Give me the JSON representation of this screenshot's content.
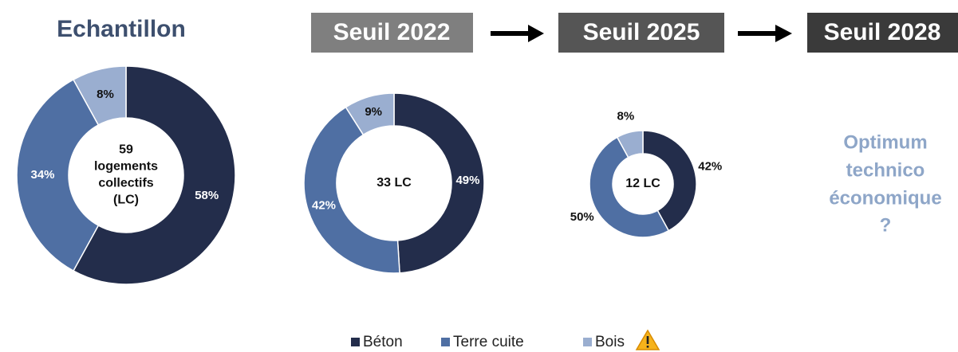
{
  "chart_data": [
    {
      "type": "donut",
      "title": "Echantillon",
      "center_label": [
        "59",
        "logements",
        "collectifs",
        "(LC)"
      ],
      "categories": [
        "Béton",
        "Terre cuite",
        "Bois"
      ],
      "values": [
        58,
        34,
        8
      ],
      "value_labels": [
        "58%",
        "34%",
        "8%"
      ],
      "colors": [
        "#232d4b",
        "#4f6fa3",
        "#9aaed0"
      ]
    },
    {
      "type": "donut",
      "title": "Seuil 2022",
      "center_label": [
        "33 LC"
      ],
      "categories": [
        "Béton",
        "Terre cuite",
        "Bois"
      ],
      "values": [
        49,
        42,
        9
      ],
      "value_labels": [
        "49%",
        "42%",
        "9%"
      ],
      "colors": [
        "#232d4b",
        "#4f6fa3",
        "#9aaed0"
      ]
    },
    {
      "type": "donut",
      "title": "Seuil 2025",
      "center_label": [
        "12 LC"
      ],
      "categories": [
        "Béton",
        "Terre cuite",
        "Bois"
      ],
      "values": [
        42,
        50,
        8
      ],
      "value_labels": [
        "42%",
        "50%",
        "8%"
      ],
      "colors": [
        "#232d4b",
        "#4f6fa3",
        "#9aaed0"
      ]
    }
  ],
  "stage_2028": {
    "title": "Seuil 2028",
    "text": [
      "Optimum",
      "technico",
      "économique",
      "?"
    ]
  }
}
